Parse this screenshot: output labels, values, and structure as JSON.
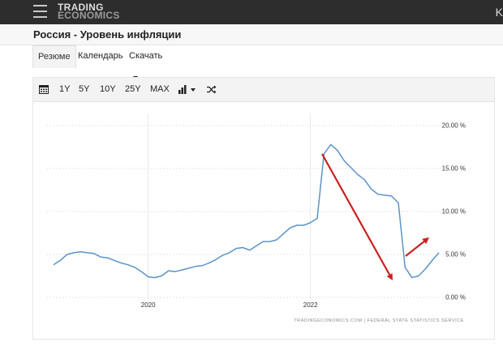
{
  "header": {
    "logo_line1": "TRADING",
    "logo_line2": "ECONOMICS",
    "right_text": "K"
  },
  "page": {
    "title": "Россия - Уровень инфляции"
  },
  "tabs": [
    {
      "label": "Резюме",
      "active": true
    },
    {
      "label": "Календарь",
      "active": false
    },
    {
      "label": "Скачать",
      "active": false
    }
  ],
  "toolbar": {
    "ranges": [
      "1Y",
      "5Y",
      "10Y",
      "25Y",
      "MAX"
    ]
  },
  "colors": {
    "line": "#5b93c7",
    "arrow": "#cc1f1f",
    "topbar": "#2d2d2d"
  },
  "chart_data": {
    "type": "line",
    "title": "",
    "xlabel": "",
    "ylabel": "",
    "x_ticks": [
      "2020",
      "2022"
    ],
    "y_ticks": [
      "0.00 %",
      "5.00 %",
      "10.00 %",
      "15.00 %",
      "20.00 %"
    ],
    "ylim": [
      0,
      20
    ],
    "grid": true,
    "source": "TRADINGECONOMICS.COM | FEDERAL STATE STATISTICS SERVICE",
    "series": [
      {
        "x": [
          "2018-11",
          "2018-12",
          "2019-01",
          "2019-02",
          "2019-03",
          "2019-04",
          "2019-05",
          "2019-06",
          "2019-07",
          "2019-08",
          "2019-09",
          "2019-10",
          "2019-11",
          "2019-12",
          "2020-01",
          "2020-02",
          "2020-03",
          "2020-04",
          "2020-05",
          "2020-06",
          "2020-07",
          "2020-08",
          "2020-09",
          "2020-10",
          "2020-11",
          "2020-12",
          "2021-01",
          "2021-02",
          "2021-03",
          "2021-04",
          "2021-05",
          "2021-06",
          "2021-07",
          "2021-08",
          "2021-09",
          "2021-10",
          "2021-11",
          "2021-12",
          "2022-01",
          "2022-02",
          "2022-03",
          "2022-04",
          "2022-05",
          "2022-06",
          "2022-07",
          "2022-08",
          "2022-09",
          "2022-10",
          "2022-11",
          "2022-12",
          "2023-01",
          "2023-02",
          "2023-03",
          "2023-04",
          "2023-05",
          "2023-06",
          "2023-07",
          "2023-08"
        ],
        "values": [
          3.8,
          4.3,
          5.0,
          5.2,
          5.3,
          5.2,
          5.1,
          4.7,
          4.6,
          4.3,
          4.0,
          3.8,
          3.5,
          3.0,
          2.4,
          2.3,
          2.5,
          3.1,
          3.0,
          3.2,
          3.4,
          3.6,
          3.7,
          4.0,
          4.4,
          4.9,
          5.2,
          5.7,
          5.8,
          5.5,
          6.0,
          6.5,
          6.5,
          6.7,
          7.4,
          8.1,
          8.4,
          8.4,
          8.7,
          9.2,
          16.7,
          17.8,
          17.1,
          15.9,
          15.1,
          14.3,
          13.7,
          12.6,
          12.0,
          11.9,
          11.8,
          11.0,
          3.5,
          2.3,
          2.5,
          3.3,
          4.3,
          5.2
        ]
      }
    ]
  }
}
